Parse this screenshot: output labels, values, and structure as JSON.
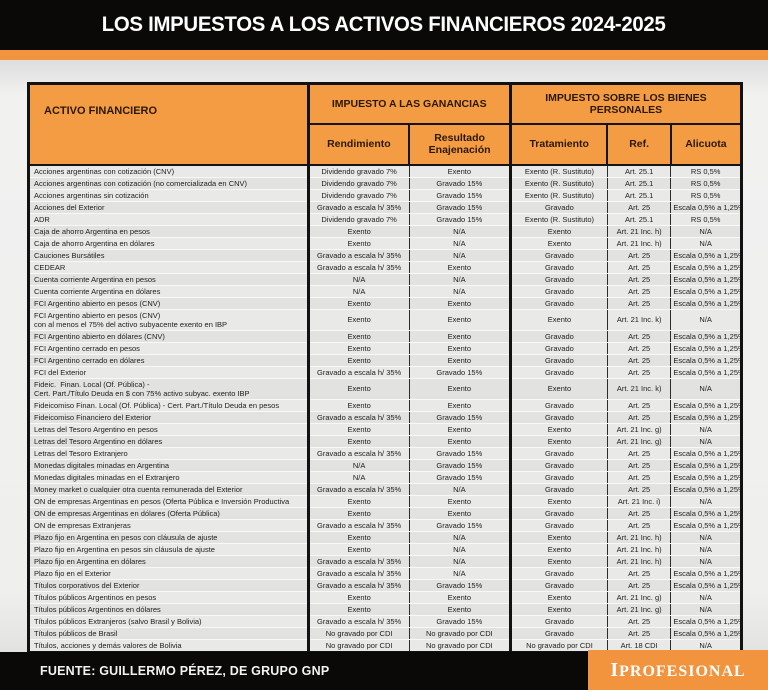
{
  "header": {
    "title": "LOS IMPUESTOS A LOS ACTIVOS FINANCIEROS 2024-2025"
  },
  "table": {
    "col_asset": "ACTIVO FINANCIERO",
    "group_ganancias": "IMPUESTO A LAS GANANCIAS",
    "group_bienes": "IMPUESTO SOBRE LOS BIENES PERSONALES",
    "col_rendimiento": "Rendimiento",
    "col_resultado": "Resultado Enajenación",
    "col_tratamiento": "Tratamiento",
    "col_ref": "Ref.",
    "col_alicuota": "Alicuota",
    "rows": [
      [
        "Acciones argentinas con cotización (CNV)",
        "Dividendo gravado 7%",
        "Exento",
        "Exento (R. Sustituto)",
        "Art. 25.1",
        "RS 0,5%"
      ],
      [
        "Acciones argentinas con cotización (no comercializada en CNV)",
        "Dividendo gravado 7%",
        "Gravado 15%",
        "Exento (R. Sustituto)",
        "Art. 25.1",
        "RS 0,5%"
      ],
      [
        "Acciones argentinas sin cotización",
        "Dividendo gravado 7%",
        "Gravado 15%",
        "Exento (R. Sustituto)",
        "Art. 25.1",
        "RS 0,5%"
      ],
      [
        "Acciones del Exterior",
        "Gravado a escala h/ 35%",
        "Gravado 15%",
        "Gravado",
        "Art. 25",
        "Escala 0,5% a 1,25%"
      ],
      [
        "ADR",
        "Dividendo gravado 7%",
        "Gravado 15%",
        "Exento (R. Sustituto)",
        "Art. 25.1",
        "RS 0,5%"
      ],
      [
        "Caja de ahorro Argentina en pesos",
        "Exento",
        "N/A",
        "Exento",
        "Art. 21 Inc. h)",
        "N/A"
      ],
      [
        "Caja de ahorro Argentina en dólares",
        "Exento",
        "N/A",
        "Exento",
        "Art. 21 Inc. h)",
        "N/A"
      ],
      [
        "Cauciones Bursátiles",
        "Gravado a escala h/ 35%",
        "N/A",
        "Gravado",
        "Art. 25",
        "Escala 0,5% a 1,25%"
      ],
      [
        "CEDEAR",
        "Gravado a escala h/ 35%",
        "Exento",
        "Gravado",
        "Art. 25",
        "Escala 0,5% a 1,25%"
      ],
      [
        "Cuenta corriente Argentina en pesos",
        "N/A",
        "N/A",
        "Gravado",
        "Art. 25",
        "Escala 0,5% a 1,25%"
      ],
      [
        "Cuenta corriente Argentina en dólares",
        "N/A",
        "N/A",
        "Gravado",
        "Art. 25",
        "Escala 0,5% a 1,25%"
      ],
      [
        "FCI Argentino abierto en pesos (CNV)",
        "Exento",
        "Exento",
        "Gravado",
        "Art. 25",
        "Escala 0,5% a 1,25%"
      ],
      [
        "FCI Argentino abierto en pesos (CNV)\ncon al menos el 75% del activo subyacente exento en IBP",
        "Exento",
        "Exento",
        "Exento",
        "Art. 21 Inc. k)",
        "N/A"
      ],
      [
        "FCI Argentino abierto en dólares (CNV)",
        "Exento",
        "Exento",
        "Gravado",
        "Art. 25",
        "Escala 0,5% a 1,25%"
      ],
      [
        "FCI Argentino cerrado en pesos",
        "Exento",
        "Exento",
        "Gravado",
        "Art. 25",
        "Escala 0,5% a 1,25%"
      ],
      [
        "FCI Argentino cerrado en dólares",
        "Exento",
        "Exento",
        "Gravado",
        "Art. 25",
        "Escala 0,5% a 1,25%"
      ],
      [
        "FCI del Exterior",
        "Gravado a escala h/ 35%",
        "Gravado 15%",
        "Gravado",
        "Art. 25",
        "Escala 0,5% a 1,25%"
      ],
      [
        "Fideic.  Finan. Local (Of. Pública) -\nCert. Part./Título Deuda en $ con 75% activo subyac. exento IBP",
        "Exento",
        "Exento",
        "Exento",
        "Art. 21 Inc. k)",
        "N/A"
      ],
      [
        "Fideicomiso Finan. Local (Of. Pública) - Cert. Part./Título Deuda en pesos",
        "Exento",
        "Exento",
        "Gravado",
        "Art. 25",
        "Escala 0,5% a 1,25%"
      ],
      [
        "Fideicomiso Financiero del Exterior",
        "Gravado a escala h/ 35%",
        "Gravado 15%",
        "Gravado",
        "Art. 25",
        "Escala 0,5% a 1,25%"
      ],
      [
        "Letras del Tesoro Argentino en pesos",
        "Exento",
        "Exento",
        "Exento",
        "Art. 21 Inc. g)",
        "N/A"
      ],
      [
        "Letras del Tesoro Argentino en dólares",
        "Exento",
        "Exento",
        "Exento",
        "Art. 21 Inc. g)",
        "N/A"
      ],
      [
        "Letras del Tesoro Extranjero",
        "Gravado a escala h/ 35%",
        "Gravado 15%",
        "Gravado",
        "Art. 25",
        "Escala 0,5% a 1,25%"
      ],
      [
        "Monedas digitales minadas en Argentina",
        "N/A",
        "Gravado 15%",
        "Gravado",
        "Art. 25",
        "Escala 0,5% a 1,25%"
      ],
      [
        "Monedas digitales minadas en el Extranjero",
        "N/A",
        "Gravado 15%",
        "Gravado",
        "Art. 25",
        "Escala 0,5% a 1,25%"
      ],
      [
        "Money market o cualquier otra cuenta remunerada del Exterior",
        "Gravado a escala h/ 35%",
        "N/A",
        "Gravado",
        "Art. 25",
        "Escala 0,5% a 1,25%"
      ],
      [
        "ON de empresas Argentinas en pesos (Oferta Pública e Inversión Productiva",
        "Exento",
        "Exento",
        "Exento",
        "Art. 21 Inc. i)",
        "N/A"
      ],
      [
        "ON de empresas Argentinas en dólares (Oferta Pública)",
        "Exento",
        "Exento",
        "Gravado",
        "Art. 25",
        "Escala 0,5% a 1,25%"
      ],
      [
        "ON de empresas Extranjeras",
        "Gravado a escala h/ 35%",
        "Gravado 15%",
        "Gravado",
        "Art. 25",
        "Escala 0,5% a 1,25%"
      ],
      [
        "Plazo fijo en Argentina en pesos con cláusula de ajuste",
        "Exento",
        "N/A",
        "Exento",
        "Art. 21 Inc. h)",
        "N/A"
      ],
      [
        "Plazo fijo en Argentina en pesos sin cláusula de ajuste",
        "Exento",
        "N/A",
        "Exento",
        "Art. 21 Inc. h)",
        "N/A"
      ],
      [
        "Plazo fijo en Argentina en dólares",
        "Gravado a escala h/ 35%",
        "N/A",
        "Exento",
        "Art. 21 Inc. h)",
        "N/A"
      ],
      [
        "Plazo fijo en el Exterior",
        "Gravado a escala h/ 35%",
        "N/A",
        "Gravado",
        "Art. 25",
        "Escala 0,5% a 1,25%"
      ],
      [
        "Títulos corporativos del Exterior",
        "Gravado a escala h/ 35%",
        "Gravado 15%",
        "Gravado",
        "Art. 25",
        "Escala 0,5% a 1,25%"
      ],
      [
        "Títulos públicos Argentinos en pesos",
        "Exento",
        "Exento",
        "Exento",
        "Art. 21 Inc. g)",
        "N/A"
      ],
      [
        "Títulos públicos Argentinos en dólares",
        "Exento",
        "Exento",
        "Exento",
        "Art. 21 Inc. g)",
        "N/A"
      ],
      [
        "Títulos públicos Extranjeros (salvo Brasil y Bolivia)",
        "Gravado a escala h/ 35%",
        "Gravado 15%",
        "Gravado",
        "Art. 25",
        "Escala 0,5% a 1,25%"
      ],
      [
        "Títulos públicos de Brasil",
        "No gravado por CDI",
        "No gravado por CDI",
        "Gravado",
        "Art. 25",
        "Escala 0,5% a 1,25%"
      ],
      [
        "Títulos, acciones y demás valores de Bolivia",
        "No gravado por CDI",
        "No gravado por CDI",
        "No gravado por CDI",
        "Art. 18 CDI",
        "N/A"
      ]
    ]
  },
  "footer": {
    "source": "FUENTE: GUILLERMO PÉREZ, DE GRUPO GNP",
    "logo": "IPROFESIONAL"
  },
  "colors": {
    "accent_orange": "#F2933E",
    "header_cell_orange": "#F49C43",
    "bar_black": "#0A0908",
    "row_gray_light": "#E9E9E8",
    "row_gray_dark": "#E2E2E1"
  }
}
